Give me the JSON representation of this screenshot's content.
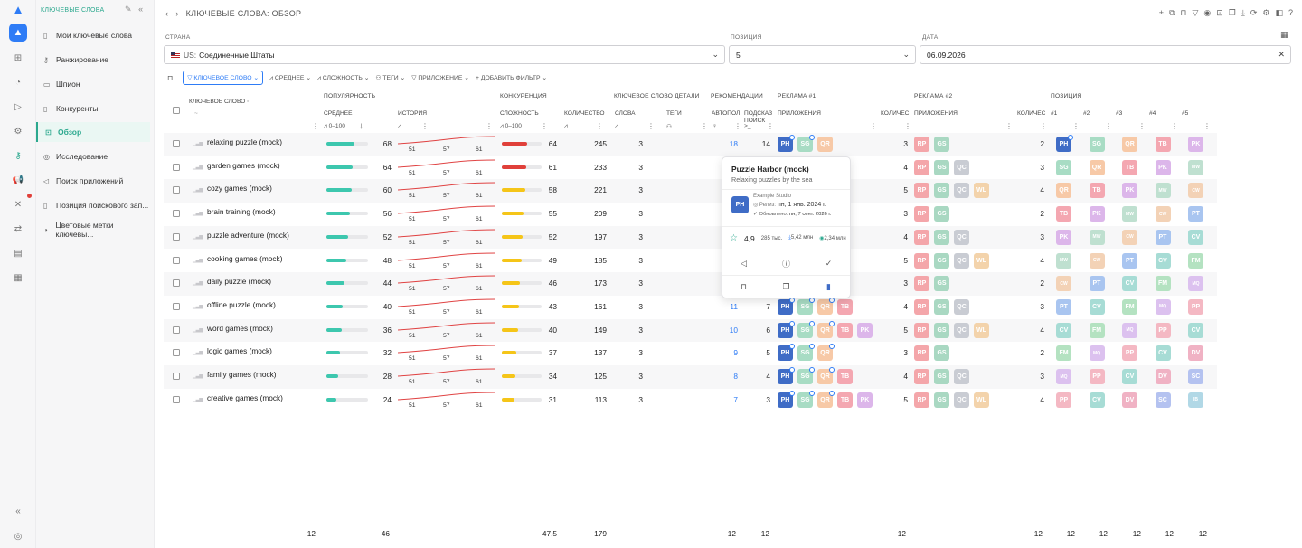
{
  "sidebar": {
    "section_title": "КЛЮЧЕВЫЕ СЛОВА",
    "items": [
      {
        "label": "Мои ключевые слова"
      },
      {
        "label": "Ранжирование"
      },
      {
        "label": "Шпион"
      },
      {
        "label": "Конкуренты"
      },
      {
        "label": "Обзор"
      },
      {
        "label": "Исследование"
      },
      {
        "label": "Поиск приложений"
      },
      {
        "label": "Позиция поискового зап..."
      },
      {
        "label": "Цветовые метки ключевы..."
      }
    ]
  },
  "header": {
    "breadcrumb_title": "КЛЮЧЕВЫЕ СЛОВА: ОБЗОР"
  },
  "filters": {
    "country_label": "СТРАНА",
    "country_value": "Соединенные Штаты",
    "country_prefix": "US:",
    "position_label": "ПОЗИЦИЯ",
    "position_value": "5",
    "date_label": "ДАТА",
    "date_value": "06.09.2026"
  },
  "chips": {
    "keyword": "КЛЮЧЕВОЕ СЛОВО",
    "average": "СРЕДНЕЕ",
    "difficulty": "СЛОЖНОСТЬ",
    "tags": "ТЕГИ",
    "app": "ПРИЛОЖЕНИЕ",
    "add_filter": "ДОБАВИТЬ ФИЛЬТР"
  },
  "table_headers": {
    "keyword": "КЛЮЧЕВОЕ СЛОВО",
    "popularity": "ПОПУЛЯРНОСТЬ",
    "average": "СРЕДНЕЕ",
    "history": "ИСТОРИЯ",
    "pop_range": "0–100",
    "competition": "КОНКУРЕНЦИЯ",
    "difficulty": "СЛОЖНОСТЬ",
    "count": "КОЛИЧЕСТВО",
    "diff_range": "0–100",
    "kw_details": "КЛЮЧЕВОЕ СЛОВО ДЕТАЛИ",
    "words": "СЛОВА",
    "tags": "ТЕГИ",
    "recommendations": "РЕКОМЕНДАЦИИ",
    "autocomplete": "АВТОПОЛ",
    "search_suggest": "ПОДСКАЗ ПОИСК",
    "ads1": "РЕКЛАМА #1",
    "apps": "ПРИЛОЖЕНИЯ",
    "count_short": "КОЛИЧЕС",
    "ads2": "РЕКЛАМА #2",
    "apps2": "ПРИЛОЖЕНИЯ",
    "count_short2": "КОЛИЧЕС",
    "position": "ПОЗИЦИЯ",
    "p1": "#1",
    "p2": "#2",
    "p3": "#3",
    "p4": "#4",
    "p5": "#5"
  },
  "history_ticks": [
    "51",
    "57",
    "61"
  ],
  "colors": {
    "accent": "#2ba88e",
    "blue": "#2e7cf6",
    "pop_bar": "#3dc7ae",
    "diff_red": "#e0403a",
    "diff_yellow": "#f5c518",
    "history_line": "#e04444"
  },
  "app_colors": {
    "PH": "#3f6cc6",
    "SG": "#a8dcc4",
    "QR": "#f7c9a7",
    "TB": "#f4a7b1",
    "PK": "#dcb6ea",
    "MW": "#bfe0d0",
    "CW": "#f3d2b6",
    "PT": "#a9c5f0",
    "CV": "#a7dcd5",
    "FM": "#b4e2c1",
    "MQ": "#dcc1ef",
    "PP": "#f4b8c3",
    "DV": "#f0b2c4",
    "SC": "#b4c2f0",
    "IB": "#b1d8e6",
    "RP": "#f4a6aa",
    "GS": "#a9d8c2",
    "QC": "#c9ccd3",
    "WL": "#f3d3ab"
  },
  "rows": [
    {
      "kw": "relaxing puzzle (mock)",
      "avg": 68,
      "pop_fill": 0.68,
      "diff": 64,
      "diff_fill": 0.64,
      "diff_color": "red",
      "count": 245,
      "words": 3,
      "auto": "",
      "sugg": 18,
      "sugg2": 14,
      "ads1": [
        "PH",
        "SG",
        "QR"
      ],
      "ads1_ring": [
        0,
        1
      ],
      "ads1_count": 3,
      "ads2": [
        "RP",
        "GS"
      ],
      "ads2_count": 2,
      "pos": [
        "PH",
        "SG",
        "QR",
        "TB",
        "PK"
      ]
    },
    {
      "kw": "garden games (mock)",
      "avg": 64,
      "pop_fill": 0.64,
      "diff": 61,
      "diff_fill": 0.61,
      "diff_color": "red",
      "count": 233,
      "words": 3,
      "auto": "",
      "sugg": "",
      "sugg2": "",
      "ads1": [],
      "ads1_ring": [],
      "ads1_count": 4,
      "ads2": [
        "RP",
        "GS",
        "QC"
      ],
      "ads2_count": 3,
      "pos": [
        "SG",
        "QR",
        "TB",
        "PK",
        "MW"
      ]
    },
    {
      "kw": "cozy games (mock)",
      "avg": 60,
      "pop_fill": 0.6,
      "diff": 58,
      "diff_fill": 0.58,
      "diff_color": "yellow",
      "count": 221,
      "words": 3,
      "auto": "",
      "sugg": "",
      "sugg2": "",
      "ads1": [
        "PK"
      ],
      "ads1_ring": [],
      "ads1_count": 5,
      "ads2": [
        "RP",
        "GS",
        "QC",
        "WL"
      ],
      "ads2_count": 4,
      "pos": [
        "QR",
        "TB",
        "PK",
        "MW",
        "CW"
      ]
    },
    {
      "kw": "brain training (mock)",
      "avg": 56,
      "pop_fill": 0.56,
      "diff": 55,
      "diff_fill": 0.55,
      "diff_color": "yellow",
      "count": 209,
      "words": 3,
      "auto": "",
      "sugg": "",
      "sugg2": "",
      "ads1": [],
      "ads1_ring": [],
      "ads1_count": 3,
      "ads2": [
        "RP",
        "GS"
      ],
      "ads2_count": 2,
      "pos": [
        "TB",
        "PK",
        "MW",
        "CW",
        "PT"
      ]
    },
    {
      "kw": "puzzle adventure (mock)",
      "avg": 52,
      "pop_fill": 0.52,
      "diff": 52,
      "diff_fill": 0.52,
      "diff_color": "yellow",
      "count": 197,
      "words": 3,
      "auto": "",
      "sugg": "",
      "sugg2": "",
      "ads1": [],
      "ads1_ring": [],
      "ads1_count": 4,
      "ads2": [
        "RP",
        "GS",
        "QC"
      ],
      "ads2_count": 3,
      "pos": [
        "PK",
        "MW",
        "CW",
        "PT",
        "CV"
      ]
    },
    {
      "kw": "cooking games (mock)",
      "avg": 48,
      "pop_fill": 0.48,
      "diff": 49,
      "diff_fill": 0.49,
      "diff_color": "yellow",
      "count": 185,
      "words": 3,
      "auto": "",
      "sugg": "",
      "sugg2": "",
      "ads1": [
        "PK"
      ],
      "ads1_ring": [],
      "ads1_count": 5,
      "ads2": [
        "RP",
        "GS",
        "QC",
        "WL"
      ],
      "ads2_count": 4,
      "pos": [
        "MW",
        "CW",
        "PT",
        "CV",
        "FM"
      ]
    },
    {
      "kw": "daily puzzle (mock)",
      "avg": 44,
      "pop_fill": 0.44,
      "diff": 46,
      "diff_fill": 0.46,
      "diff_color": "yellow",
      "count": 173,
      "words": 3,
      "auto": "",
      "sugg": "",
      "sugg2": "",
      "ads1": [],
      "ads1_ring": [],
      "ads1_count": 3,
      "ads2": [
        "RP",
        "GS"
      ],
      "ads2_count": 2,
      "pos": [
        "CW",
        "PT",
        "CV",
        "FM",
        "MQ"
      ]
    },
    {
      "kw": "offline puzzle (mock)",
      "avg": 40,
      "pop_fill": 0.4,
      "diff": 43,
      "diff_fill": 0.43,
      "diff_color": "yellow",
      "count": 161,
      "words": 3,
      "auto": "",
      "sugg": 11,
      "sugg2": 7,
      "ads1": [
        "PH",
        "SG",
        "QR",
        "TB"
      ],
      "ads1_ring": [
        0,
        1,
        2
      ],
      "ads1_count": 4,
      "ads2": [
        "RP",
        "GS",
        "QC"
      ],
      "ads2_count": 3,
      "pos": [
        "PT",
        "CV",
        "FM",
        "MQ",
        "PP"
      ]
    },
    {
      "kw": "word games (mock)",
      "avg": 36,
      "pop_fill": 0.36,
      "diff": 40,
      "diff_fill": 0.4,
      "diff_color": "yellow",
      "count": 149,
      "words": 3,
      "auto": "",
      "sugg": 10,
      "sugg2": 6,
      "ads1": [
        "PH",
        "SG",
        "QR",
        "TB",
        "PK"
      ],
      "ads1_ring": [
        0,
        1,
        2
      ],
      "ads1_count": 5,
      "ads2": [
        "RP",
        "GS",
        "QC",
        "WL"
      ],
      "ads2_count": 4,
      "pos": [
        "CV",
        "FM",
        "MQ",
        "PP",
        "CV"
      ]
    },
    {
      "kw": "logic games (mock)",
      "avg": 32,
      "pop_fill": 0.32,
      "diff": 37,
      "diff_fill": 0.37,
      "diff_color": "yellow",
      "count": 137,
      "words": 3,
      "auto": "",
      "sugg": 9,
      "sugg2": 5,
      "ads1": [
        "PH",
        "SG",
        "QR"
      ],
      "ads1_ring": [
        0,
        1,
        2
      ],
      "ads1_count": 3,
      "ads2": [
        "RP",
        "GS"
      ],
      "ads2_count": 2,
      "pos": [
        "FM",
        "MQ",
        "PP",
        "CV",
        "DV"
      ]
    },
    {
      "kw": "family games (mock)",
      "avg": 28,
      "pop_fill": 0.28,
      "diff": 34,
      "diff_fill": 0.34,
      "diff_color": "yellow",
      "count": 125,
      "words": 3,
      "auto": "",
      "sugg": 8,
      "sugg2": 4,
      "ads1": [
        "PH",
        "SG",
        "QR",
        "TB"
      ],
      "ads1_ring": [
        0,
        1,
        2
      ],
      "ads1_count": 4,
      "ads2": [
        "RP",
        "GS",
        "QC"
      ],
      "ads2_count": 3,
      "pos": [
        "MQ",
        "PP",
        "CV",
        "DV",
        "SC"
      ]
    },
    {
      "kw": "creative games (mock)",
      "avg": 24,
      "pop_fill": 0.24,
      "diff": 31,
      "diff_fill": 0.31,
      "diff_color": "yellow",
      "count": 113,
      "words": 3,
      "auto": "",
      "sugg": 7,
      "sugg2": 3,
      "ads1": [
        "PH",
        "SG",
        "QR",
        "TB",
        "PK"
      ],
      "ads1_ring": [
        0,
        1,
        2
      ],
      "ads1_count": 5,
      "ads2": [
        "RP",
        "GS",
        "QC",
        "WL"
      ],
      "ads2_count": 4,
      "pos": [
        "PP",
        "CV",
        "DV",
        "SC",
        "IB"
      ]
    }
  ],
  "footer": {
    "rows": "12",
    "avg": "46",
    "diff": "47,5",
    "count": "179",
    "sugg": "12",
    "sugg2": "12",
    "ads1": "12",
    "ads2": "12",
    "p1": "12",
    "p2": "12",
    "p3": "12",
    "p4": "12",
    "p5": "12"
  },
  "tooltip": {
    "title": "Puzzle Harbor (mock)",
    "subtitle": "Relaxing puzzles by the sea",
    "icon": "PH",
    "developer": "Example Studio",
    "release_label": "Релиз:",
    "release_value": "пн, 1 янв. 2024 г.",
    "updated_label": "Обновлено:",
    "updated_value": "пн, 7 сент. 2026 г.",
    "rating": "4,9",
    "reviews": "285 тыс.",
    "downloads": "5,42 млн",
    "revenue": "2,34 млн"
  }
}
